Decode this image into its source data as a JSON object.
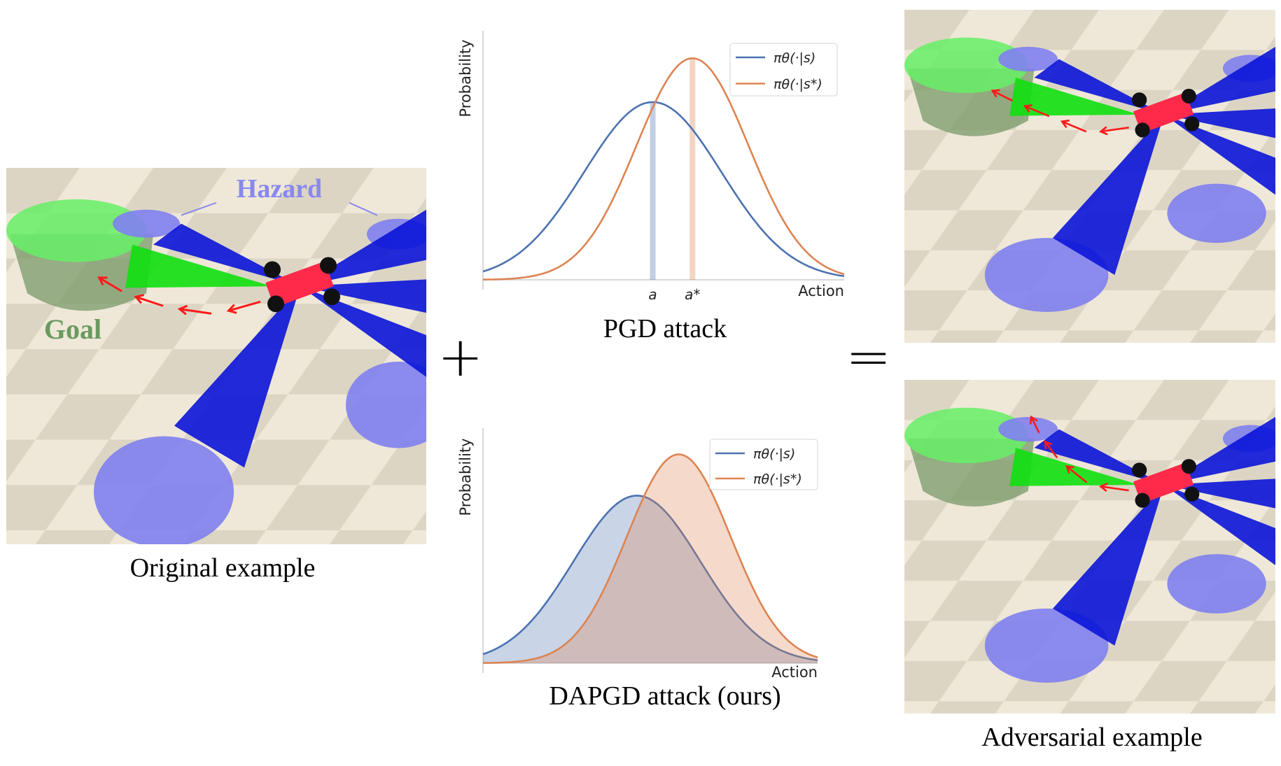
{
  "left_panel": {
    "caption": "Original example",
    "labels": {
      "hazard": "Hazard",
      "goal": "Goal"
    }
  },
  "operators": {
    "plus": "+",
    "equals": "="
  },
  "right_panel": {
    "caption": "Adversarial example"
  },
  "colors": {
    "blue": "#4c72b0",
    "orange": "#dd8452",
    "hazard": "#8080f0",
    "goal": "#66ee66",
    "robot": "#ff2a4a",
    "lidar_blue": "#0a14d8",
    "lidar_green": "#10e010",
    "arrow": "#ff1a1a"
  },
  "chart_data": [
    {
      "type": "line",
      "title": "PGD attack",
      "xlabel": "Action",
      "ylabel": "Probability",
      "xlim": [
        0,
        10
      ],
      "ylim": [
        0,
        1
      ],
      "xticks": [
        {
          "value": 4.7,
          "label": "a"
        },
        {
          "value": 5.8,
          "label": "a*"
        }
      ],
      "legend": "top-right",
      "fill": false,
      "series": [
        {
          "name": "πθ(·|s)",
          "distribution": "gaussian",
          "mean": 4.7,
          "std": 1.9,
          "peak": 0.73,
          "color": "#4c72b0"
        },
        {
          "name": "πθ(·|s*)",
          "distribution": "gaussian",
          "mean": 5.8,
          "std": 1.55,
          "peak": 0.91,
          "color": "#dd8452"
        }
      ]
    },
    {
      "type": "area",
      "title": "DAPGD attack (ours)",
      "xlabel": "Action",
      "ylabel": "Probability",
      "xlim": [
        0,
        10
      ],
      "ylim": [
        0,
        1
      ],
      "legend": "top-right",
      "fill": true,
      "series": [
        {
          "name": "πθ(·|s)",
          "distribution": "gaussian",
          "mean": 4.6,
          "std": 1.9,
          "peak": 0.73,
          "color": "#4c72b0"
        },
        {
          "name": "πθ(·|s*)",
          "distribution": "gaussian",
          "mean": 5.85,
          "std": 1.55,
          "peak": 0.91,
          "color": "#dd8452"
        }
      ]
    }
  ]
}
